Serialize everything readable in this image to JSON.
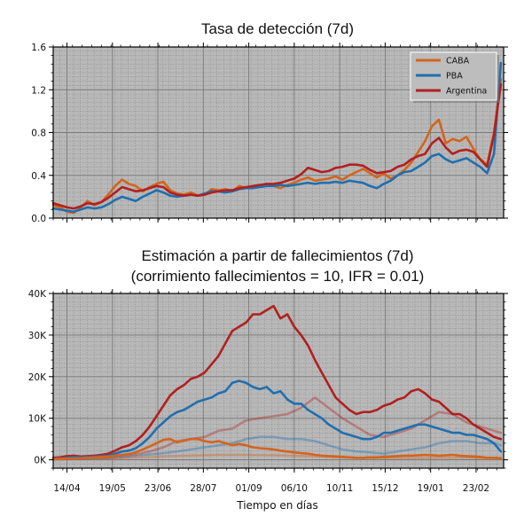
{
  "colors": {
    "background": "#b8b8b8",
    "caba": "#d4641c",
    "pba": "#1f6fb0",
    "argentina": "#b21f1f"
  },
  "chart_data": [
    {
      "type": "line",
      "title": "Tasa de detección (7d)",
      "xlabel": "",
      "ylabel": "",
      "x_range_days": [
        0,
        327
      ],
      "ylim": [
        0,
        1.6
      ],
      "yticks": [
        0.0,
        0.4,
        0.8,
        1.2,
        1.6
      ],
      "ytick_labels": [
        "0.0",
        "0.4",
        "0.8",
        "1.2",
        "1.6"
      ],
      "grid": true,
      "legend_position": "top-right",
      "series": [
        {
          "name": "CABA",
          "color_key": "caba",
          "x": [
            0,
            5,
            10,
            15,
            20,
            25,
            30,
            35,
            40,
            45,
            50,
            55,
            60,
            65,
            70,
            75,
            80,
            85,
            90,
            95,
            100,
            105,
            110,
            115,
            120,
            125,
            130,
            135,
            140,
            145,
            150,
            155,
            160,
            165,
            170,
            175,
            180,
            185,
            190,
            195,
            200,
            205,
            210,
            215,
            220,
            225,
            230,
            235,
            240,
            245,
            250,
            255,
            260,
            265,
            270,
            275,
            280,
            285,
            290,
            295,
            300,
            305,
            310,
            315,
            320,
            325
          ],
          "y": [
            0.12,
            0.1,
            0.06,
            0.05,
            0.1,
            0.16,
            0.12,
            0.15,
            0.22,
            0.3,
            0.36,
            0.32,
            0.3,
            0.25,
            0.29,
            0.32,
            0.34,
            0.26,
            0.23,
            0.22,
            0.24,
            0.21,
            0.22,
            0.27,
            0.26,
            0.27,
            0.25,
            0.3,
            0.28,
            0.29,
            0.3,
            0.32,
            0.3,
            0.28,
            0.31,
            0.33,
            0.36,
            0.38,
            0.35,
            0.36,
            0.37,
            0.39,
            0.36,
            0.4,
            0.43,
            0.46,
            0.42,
            0.38,
            0.42,
            0.37,
            0.4,
            0.45,
            0.52,
            0.62,
            0.72,
            0.86,
            0.92,
            0.7,
            0.74,
            0.72,
            0.76,
            0.65,
            0.55,
            0.5,
            0.8,
            1.3
          ]
        },
        {
          "name": "PBA",
          "color_key": "pba",
          "x": [
            0,
            5,
            10,
            15,
            20,
            25,
            30,
            35,
            40,
            45,
            50,
            55,
            60,
            65,
            70,
            75,
            80,
            85,
            90,
            95,
            100,
            105,
            110,
            115,
            120,
            125,
            130,
            135,
            140,
            145,
            150,
            155,
            160,
            165,
            170,
            175,
            180,
            185,
            190,
            195,
            200,
            205,
            210,
            215,
            220,
            225,
            230,
            235,
            240,
            245,
            250,
            255,
            260,
            265,
            270,
            275,
            280,
            285,
            290,
            295,
            300,
            305,
            310,
            315,
            320,
            325
          ],
          "y": [
            0.09,
            0.08,
            0.07,
            0.06,
            0.08,
            0.1,
            0.09,
            0.1,
            0.13,
            0.17,
            0.2,
            0.18,
            0.16,
            0.2,
            0.23,
            0.26,
            0.24,
            0.21,
            0.2,
            0.21,
            0.22,
            0.21,
            0.23,
            0.25,
            0.25,
            0.24,
            0.25,
            0.27,
            0.28,
            0.28,
            0.29,
            0.3,
            0.3,
            0.31,
            0.3,
            0.31,
            0.32,
            0.33,
            0.32,
            0.33,
            0.33,
            0.34,
            0.33,
            0.35,
            0.34,
            0.33,
            0.3,
            0.28,
            0.32,
            0.35,
            0.4,
            0.43,
            0.44,
            0.48,
            0.52,
            0.58,
            0.6,
            0.55,
            0.52,
            0.54,
            0.56,
            0.52,
            0.48,
            0.42,
            0.6,
            1.45
          ]
        },
        {
          "name": "Argentina",
          "color_key": "argentina",
          "x": [
            0,
            5,
            10,
            15,
            20,
            25,
            30,
            35,
            40,
            45,
            50,
            55,
            60,
            65,
            70,
            75,
            80,
            85,
            90,
            95,
            100,
            105,
            110,
            115,
            120,
            125,
            130,
            135,
            140,
            145,
            150,
            155,
            160,
            165,
            170,
            175,
            180,
            185,
            190,
            195,
            200,
            205,
            210,
            215,
            220,
            225,
            230,
            235,
            240,
            245,
            250,
            255,
            260,
            265,
            270,
            275,
            280,
            285,
            290,
            295,
            300,
            305,
            310,
            315,
            320,
            325
          ],
          "y": [
            0.14,
            0.12,
            0.1,
            0.09,
            0.11,
            0.14,
            0.13,
            0.15,
            0.19,
            0.24,
            0.29,
            0.27,
            0.25,
            0.26,
            0.28,
            0.3,
            0.29,
            0.24,
            0.22,
            0.21,
            0.22,
            0.21,
            0.22,
            0.24,
            0.25,
            0.26,
            0.26,
            0.28,
            0.29,
            0.3,
            0.31,
            0.32,
            0.32,
            0.33,
            0.35,
            0.37,
            0.41,
            0.47,
            0.45,
            0.43,
            0.44,
            0.47,
            0.48,
            0.5,
            0.5,
            0.49,
            0.45,
            0.42,
            0.43,
            0.44,
            0.48,
            0.5,
            0.55,
            0.58,
            0.6,
            0.7,
            0.75,
            0.66,
            0.6,
            0.63,
            0.64,
            0.62,
            0.55,
            0.48,
            0.78,
            1.25
          ]
        }
      ]
    },
    {
      "type": "line",
      "title_lines": [
        "Estimación a partir de fallecimientos (7d)",
        "(corrimiento fallecimientos = 10, IFR = 0.01)"
      ],
      "xlabel": "Tiempo en días",
      "ylabel": "",
      "x_range_days": [
        0,
        327
      ],
      "ylim": [
        -2000,
        40000
      ],
      "yticks": [
        0,
        10000,
        20000,
        30000,
        40000
      ],
      "ytick_labels": [
        "0K",
        "10K",
        "20K",
        "30K",
        "40K"
      ],
      "xticks": [
        10,
        43,
        76,
        109,
        142,
        175,
        208,
        241,
        274,
        307
      ],
      "xtick_labels": [
        "14/04",
        "19/05",
        "23/06",
        "28/07",
        "01/09",
        "06/10",
        "10/11",
        "15/12",
        "19/01",
        "23/02"
      ],
      "grid": true,
      "series": [
        {
          "name": "Argentina",
          "color_key": "argentina",
          "opacity": 1,
          "x": [
            0,
            5,
            10,
            15,
            20,
            25,
            30,
            35,
            40,
            45,
            50,
            55,
            60,
            65,
            70,
            75,
            80,
            85,
            90,
            95,
            100,
            105,
            110,
            115,
            120,
            125,
            130,
            135,
            140,
            145,
            150,
            155,
            160,
            165,
            170,
            175,
            180,
            185,
            190,
            195,
            200,
            205,
            210,
            215,
            220,
            225,
            230,
            235,
            240,
            245,
            250,
            255,
            260,
            265,
            270,
            275,
            280,
            285,
            290,
            295,
            300,
            305,
            310,
            315,
            320,
            325
          ],
          "y": [
            500,
            600,
            900,
            1000,
            800,
            900,
            1000,
            1200,
            1500,
            2200,
            3000,
            3500,
            4500,
            6000,
            8000,
            10500,
            13000,
            15500,
            17000,
            18000,
            19500,
            20000,
            21000,
            23000,
            25000,
            28000,
            31000,
            32000,
            33000,
            35000,
            35000,
            36000,
            37000,
            34000,
            35000,
            32000,
            30000,
            27500,
            24000,
            21000,
            18000,
            15000,
            13500,
            12000,
            11000,
            11500,
            11500,
            12000,
            13000,
            13500,
            14500,
            15000,
            16500,
            17000,
            16000,
            14500,
            14000,
            12500,
            11000,
            11000,
            10000,
            8500,
            7500,
            6500,
            5500,
            5000
          ]
        },
        {
          "name": "Argentina (tenue)",
          "color_key": "argentina",
          "opacity": 0.38,
          "x": [
            0,
            10,
            20,
            30,
            40,
            50,
            60,
            70,
            80,
            90,
            100,
            110,
            120,
            130,
            140,
            150,
            160,
            170,
            180,
            190,
            200,
            210,
            220,
            230,
            240,
            250,
            260,
            270,
            280,
            290,
            300,
            310,
            320,
            325
          ],
          "y": [
            200,
            300,
            300,
            400,
            500,
            900,
            1300,
            2000,
            3000,
            4500,
            5000,
            5500,
            7000,
            7500,
            9500,
            10000,
            10500,
            11000,
            12500,
            15000,
            12500,
            10000,
            8000,
            6000,
            5500,
            6500,
            7500,
            9500,
            11500,
            11000,
            9000,
            8000,
            7000,
            6500
          ]
        },
        {
          "name": "PBA",
          "color_key": "pba",
          "opacity": 1,
          "x": [
            0,
            5,
            10,
            15,
            20,
            25,
            30,
            35,
            40,
            45,
            50,
            55,
            60,
            65,
            70,
            75,
            80,
            85,
            90,
            95,
            100,
            105,
            110,
            115,
            120,
            125,
            130,
            135,
            140,
            145,
            150,
            155,
            160,
            165,
            170,
            175,
            180,
            185,
            190,
            195,
            200,
            205,
            210,
            215,
            220,
            225,
            230,
            235,
            240,
            245,
            250,
            255,
            260,
            265,
            270,
            275,
            280,
            285,
            290,
            295,
            300,
            305,
            310,
            315,
            320,
            325
          ],
          "y": [
            300,
            350,
            500,
            700,
            600,
            700,
            800,
            900,
            1000,
            1500,
            2000,
            2200,
            2800,
            4000,
            5500,
            7500,
            9000,
            10500,
            11500,
            12000,
            13000,
            14000,
            14500,
            15000,
            16000,
            16500,
            18500,
            19000,
            18500,
            17500,
            17000,
            17500,
            16000,
            16500,
            14500,
            13500,
            13500,
            12000,
            11000,
            10000,
            8500,
            7500,
            6500,
            6000,
            5500,
            5000,
            5000,
            5500,
            6500,
            6500,
            7000,
            7500,
            8000,
            8500,
            8500,
            8000,
            7500,
            7000,
            6500,
            6500,
            6000,
            6000,
            5500,
            5000,
            4000,
            2000
          ]
        },
        {
          "name": "PBA (tenue)",
          "color_key": "pba",
          "opacity": 0.38,
          "x": [
            0,
            10,
            20,
            30,
            40,
            50,
            60,
            70,
            80,
            90,
            100,
            110,
            120,
            130,
            140,
            150,
            160,
            170,
            180,
            190,
            200,
            210,
            220,
            230,
            240,
            250,
            260,
            270,
            280,
            290,
            300,
            310,
            320,
            325
          ],
          "y": [
            100,
            200,
            200,
            300,
            400,
            600,
            900,
            1300,
            1600,
            2000,
            2500,
            3000,
            3500,
            4000,
            5000,
            5500,
            5500,
            5000,
            5000,
            4500,
            3500,
            2500,
            2000,
            1800,
            1500,
            2000,
            2500,
            3000,
            4000,
            4500,
            4500,
            4000,
            4000,
            3500
          ]
        },
        {
          "name": "CABA",
          "color_key": "caba",
          "opacity": 1,
          "x": [
            0,
            5,
            10,
            15,
            20,
            25,
            30,
            35,
            40,
            45,
            50,
            55,
            60,
            65,
            70,
            75,
            80,
            85,
            90,
            95,
            100,
            105,
            110,
            115,
            120,
            125,
            130,
            135,
            140,
            145,
            150,
            155,
            160,
            165,
            170,
            175,
            180,
            185,
            190,
            195,
            200,
            205,
            210,
            215,
            220,
            225,
            230,
            235,
            240,
            245,
            250,
            255,
            260,
            265,
            270,
            275,
            280,
            285,
            290,
            295,
            300,
            305,
            310,
            315,
            320,
            325
          ],
          "y": [
            200,
            250,
            300,
            350,
            400,
            500,
            600,
            700,
            800,
            1000,
            1200,
            1400,
            1800,
            2500,
            3200,
            4000,
            4800,
            5000,
            4200,
            4600,
            5000,
            5000,
            4500,
            4200,
            4500,
            4000,
            3500,
            3800,
            3500,
            3000,
            2800,
            2700,
            2500,
            2200,
            2000,
            1800,
            1600,
            1500,
            1200,
            1000,
            900,
            800,
            700,
            600,
            500,
            500,
            600,
            600,
            700,
            800,
            900,
            1000,
            1000,
            1100,
            1200,
            1100,
            1000,
            1100,
            1200,
            1000,
            900,
            800,
            700,
            500,
            500,
            400
          ]
        },
        {
          "name": "CABA (tenue)",
          "color_key": "caba",
          "opacity": 0.38,
          "x": [
            0,
            20,
            40,
            60,
            80,
            100,
            120,
            140,
            160,
            180,
            200,
            220,
            240,
            260,
            280,
            300,
            320,
            325
          ],
          "y": [
            100,
            200,
            300,
            500,
            800,
            1000,
            1200,
            1200,
            1100,
            900,
            700,
            500,
            400,
            400,
            500,
            500,
            300,
            250
          ]
        }
      ]
    }
  ]
}
